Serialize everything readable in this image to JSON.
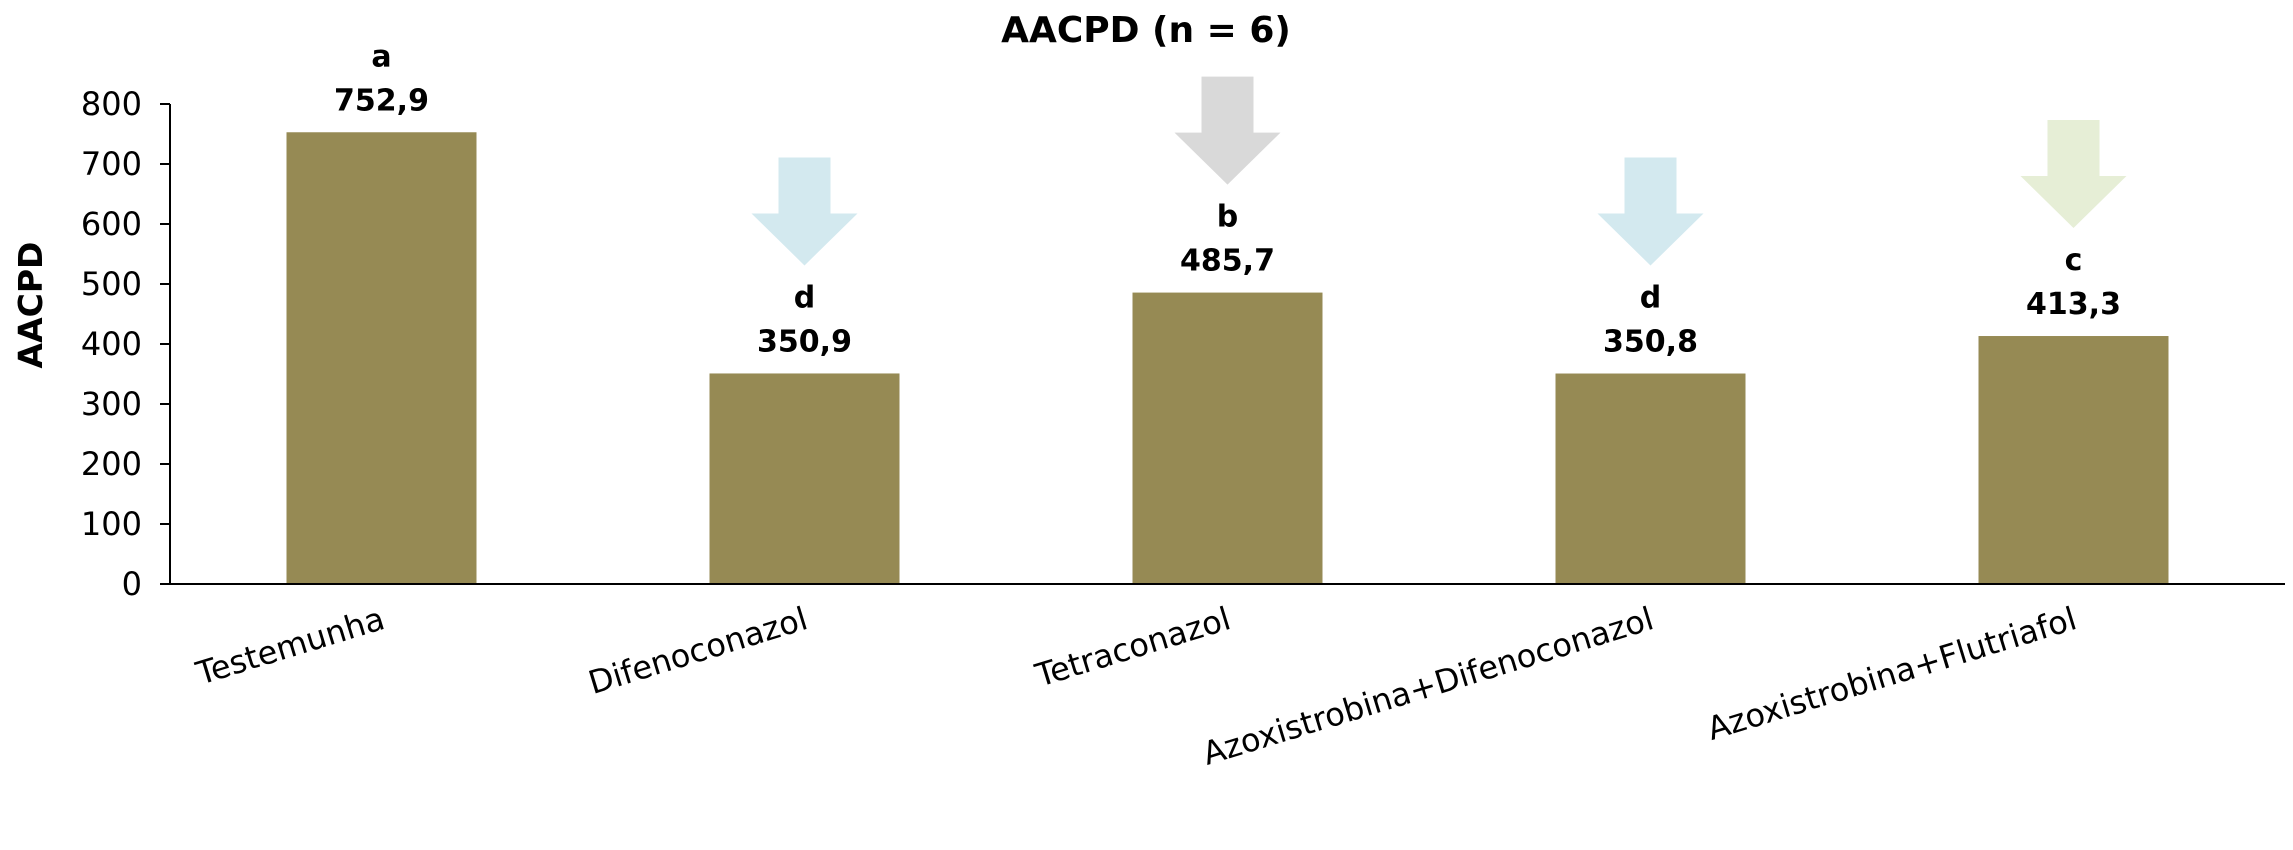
{
  "chart_data": {
    "type": "bar",
    "title": "AACPD (n = 6)",
    "xlabel": "",
    "ylabel": "AACPD",
    "ylim": [
      0,
      800
    ],
    "yticks": [
      0,
      100,
      200,
      300,
      400,
      500,
      600,
      700,
      800
    ],
    "grid": false,
    "categories": [
      "Testemunha",
      "Difenoconazol",
      "Tetraconazol",
      "Azoxistrobina+Difenoconazol",
      "Azoxistrobina+Flutriafol"
    ],
    "values": [
      752.9,
      350.9,
      485.7,
      350.8,
      413.3
    ],
    "value_labels": [
      "752,9",
      "350,9",
      "485,7",
      "350,8",
      "413,3"
    ],
    "group_letters": [
      "a",
      "d",
      "b",
      "d",
      "c"
    ],
    "bar_color": "#968a54",
    "annotations": [
      {
        "category": "Difenoconazol",
        "shape": "down-arrow",
        "color": "#d3e9ef"
      },
      {
        "category": "Tetraconazol",
        "shape": "down-arrow",
        "color": "#d9d9d9"
      },
      {
        "category": "Azoxistrobina+Difenoconazol",
        "shape": "down-arrow",
        "color": "#d3e9ef"
      },
      {
        "category": "Azoxistrobina+Flutriafol",
        "shape": "down-arrow",
        "color": "#e6eed6"
      }
    ]
  }
}
